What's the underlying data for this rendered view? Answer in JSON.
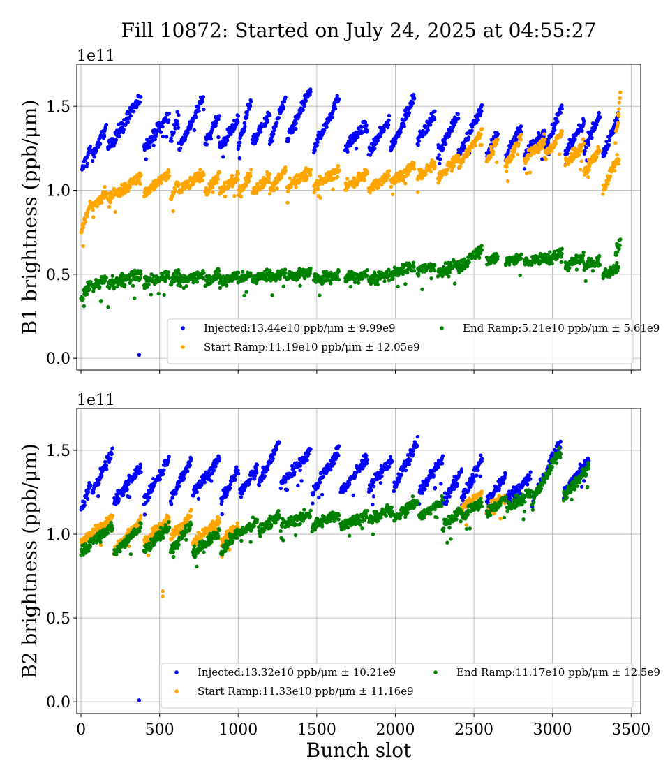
{
  "chart_data": [
    {
      "type": "scatter",
      "title": "Fill 10872: Started on July 24, 2025 at 04:55:27",
      "xlabel": "",
      "ylabel": "B1 brightness (ppb/μm)",
      "offset_label": "1e11",
      "xlim": [
        -27,
        3561
      ],
      "ylim": [
        -0.07,
        1.75
      ],
      "xticks": [
        0,
        500,
        1000,
        1500,
        2000,
        2500,
        3000,
        3500
      ],
      "yticks": [
        "0.0",
        "0.5",
        "1.0",
        "1.5"
      ],
      "grid": true,
      "legend_position": "lower-right",
      "series": [
        {
          "name": "Injected:13.44e10 ppb/μm ± 9.99e9",
          "color": "#0000ff",
          "trains": [
            [
              5,
              60,
              1.12,
              1.25
            ],
            [
              70,
              160,
              1.2,
              1.38
            ],
            [
              170,
              380,
              1.25,
              1.55
            ],
            [
              400,
              560,
              1.25,
              1.45
            ],
            [
              570,
              620,
              1.3,
              1.45
            ],
            [
              620,
              780,
              1.25,
              1.55
            ],
            [
              790,
              880,
              1.28,
              1.45
            ],
            [
              880,
              1000,
              1.25,
              1.42
            ],
            [
              1000,
              1080,
              1.25,
              1.55
            ],
            [
              1090,
              1200,
              1.28,
              1.45
            ],
            [
              1200,
              1300,
              1.28,
              1.55
            ],
            [
              1310,
              1460,
              1.3,
              1.6
            ],
            [
              1480,
              1640,
              1.25,
              1.55
            ],
            [
              1680,
              1820,
              1.25,
              1.4
            ],
            [
              1830,
              1960,
              1.22,
              1.42
            ],
            [
              1970,
              2120,
              1.25,
              1.55
            ],
            [
              2140,
              2250,
              1.3,
              1.45
            ],
            [
              2270,
              2400,
              1.22,
              1.45
            ],
            [
              2400,
              2550,
              1.2,
              1.5
            ],
            [
              2580,
              2650,
              1.2,
              1.35
            ],
            [
              2700,
              2800,
              1.2,
              1.38
            ],
            [
              2820,
              2950,
              1.2,
              1.35
            ],
            [
              2950,
              3060,
              1.25,
              1.5
            ],
            [
              3080,
              3200,
              1.22,
              1.4
            ],
            [
              3200,
              3300,
              1.25,
              1.45
            ],
            [
              3320,
              3420,
              1.2,
              1.45
            ]
          ],
          "outliers": [
            [
              370,
              0.02
            ]
          ]
        },
        {
          "name": "Start Ramp:11.19e10 ppb/μm ± 12.05e9",
          "color": "#ffa500",
          "trains": [
            [
              0,
              60,
              0.75,
              0.92
            ],
            [
              70,
              160,
              0.9,
              1.0
            ],
            [
              170,
              380,
              0.95,
              1.08
            ],
            [
              400,
              560,
              0.98,
              1.1
            ],
            [
              570,
              620,
              0.95,
              1.05
            ],
            [
              620,
              780,
              1.0,
              1.1
            ],
            [
              790,
              880,
              0.98,
              1.1
            ],
            [
              880,
              1000,
              0.98,
              1.08
            ],
            [
              1000,
              1080,
              0.98,
              1.1
            ],
            [
              1090,
              1200,
              1.0,
              1.08
            ],
            [
              1200,
              1300,
              1.0,
              1.12
            ],
            [
              1310,
              1460,
              1.02,
              1.12
            ],
            [
              1480,
              1640,
              1.02,
              1.12
            ],
            [
              1680,
              1820,
              1.02,
              1.1
            ],
            [
              1830,
              1960,
              1.0,
              1.1
            ],
            [
              1970,
              2120,
              1.05,
              1.15
            ],
            [
              2140,
              2250,
              1.08,
              1.15
            ],
            [
              2270,
              2400,
              1.08,
              1.2
            ],
            [
              2400,
              2550,
              1.15,
              1.35
            ],
            [
              2580,
              2650,
              1.18,
              1.3
            ],
            [
              2700,
              2800,
              1.15,
              1.32
            ],
            [
              2820,
              2950,
              1.18,
              1.3
            ],
            [
              2950,
              3060,
              1.2,
              1.35
            ],
            [
              3080,
              3200,
              1.15,
              1.28
            ],
            [
              3200,
              3300,
              1.1,
              1.25
            ],
            [
              3320,
              3420,
              1.0,
              1.2
            ],
            [
              3400,
              3430,
              1.3,
              1.55
            ]
          ],
          "outliers": []
        },
        {
          "name": "End Ramp:5.21e10 ppb/μm ± 5.61e9",
          "color": "#008000",
          "trains": [
            [
              0,
              60,
              0.35,
              0.45
            ],
            [
              70,
              160,
              0.42,
              0.47
            ],
            [
              170,
              380,
              0.44,
              0.5
            ],
            [
              400,
              560,
              0.45,
              0.5
            ],
            [
              570,
              620,
              0.45,
              0.5
            ],
            [
              620,
              780,
              0.46,
              0.5
            ],
            [
              790,
              880,
              0.46,
              0.5
            ],
            [
              880,
              1000,
              0.45,
              0.5
            ],
            [
              1000,
              1080,
              0.47,
              0.5
            ],
            [
              1090,
              1200,
              0.47,
              0.5
            ],
            [
              1200,
              1300,
              0.48,
              0.51
            ],
            [
              1310,
              1460,
              0.48,
              0.52
            ],
            [
              1480,
              1640,
              0.47,
              0.5
            ],
            [
              1680,
              1820,
              0.48,
              0.5
            ],
            [
              1830,
              1960,
              0.47,
              0.5
            ],
            [
              1970,
              2120,
              0.5,
              0.55
            ],
            [
              2140,
              2250,
              0.52,
              0.55
            ],
            [
              2270,
              2400,
              0.52,
              0.56
            ],
            [
              2400,
              2550,
              0.54,
              0.65
            ],
            [
              2580,
              2650,
              0.58,
              0.6
            ],
            [
              2700,
              2800,
              0.57,
              0.6
            ],
            [
              2820,
              2950,
              0.57,
              0.6
            ],
            [
              2950,
              3060,
              0.58,
              0.63
            ],
            [
              3080,
              3200,
              0.55,
              0.59
            ],
            [
              3200,
              3300,
              0.55,
              0.58
            ],
            [
              3320,
              3420,
              0.5,
              0.55
            ],
            [
              3400,
              3430,
              0.62,
              0.7
            ]
          ],
          "outliers": []
        }
      ]
    },
    {
      "type": "scatter",
      "title": "",
      "xlabel": "Bunch slot",
      "ylabel": "B2 brightness (ppb/μm)",
      "offset_label": "1e11",
      "xlim": [
        -27,
        3561
      ],
      "ylim": [
        -0.07,
        1.75
      ],
      "xticks": [
        0,
        500,
        1000,
        1500,
        2000,
        2500,
        3000,
        3500
      ],
      "yticks": [
        "0.0",
        "0.5",
        "1.0",
        "1.5"
      ],
      "grid": true,
      "legend_position": "lower-right",
      "series": [
        {
          "name": "Injected:13.32e10 ppb/μm ± 10.21e9",
          "color": "#0000ff",
          "trains": [
            [
              0,
              60,
              1.15,
              1.3
            ],
            [
              70,
              200,
              1.25,
              1.5
            ],
            [
              210,
              380,
              1.2,
              1.4
            ],
            [
              400,
              560,
              1.2,
              1.45
            ],
            [
              570,
              700,
              1.2,
              1.45
            ],
            [
              710,
              880,
              1.25,
              1.45
            ],
            [
              890,
              1000,
              1.2,
              1.38
            ],
            [
              1010,
              1120,
              1.25,
              1.4
            ],
            [
              1130,
              1260,
              1.3,
              1.55
            ],
            [
              1270,
              1460,
              1.3,
              1.5
            ],
            [
              1470,
              1640,
              1.25,
              1.5
            ],
            [
              1650,
              1820,
              1.25,
              1.45
            ],
            [
              1830,
              1980,
              1.28,
              1.45
            ],
            [
              1990,
              2140,
              1.28,
              1.55
            ],
            [
              2150,
              2300,
              1.25,
              1.45
            ],
            [
              2300,
              2420,
              1.18,
              1.38
            ],
            [
              2420,
              2550,
              1.2,
              1.45
            ],
            [
              2580,
              2700,
              1.2,
              1.35
            ],
            [
              2710,
              2860,
              1.2,
              1.35
            ],
            [
              2870,
              3050,
              1.2,
              1.55
            ],
            [
              3070,
              3230,
              1.25,
              1.45
            ]
          ],
          "outliers": [
            [
              370,
              0.01
            ]
          ]
        },
        {
          "name": "Start Ramp:11.33e10 ppb/μm ± 11.16e9",
          "color": "#ffa500",
          "trains": [
            [
              0,
              200,
              0.95,
              1.1
            ],
            [
              210,
              380,
              0.9,
              1.08
            ],
            [
              400,
              560,
              0.95,
              1.1
            ],
            [
              570,
              700,
              0.98,
              1.12
            ],
            [
              710,
              880,
              0.95,
              1.08
            ],
            [
              890,
              1000,
              0.95,
              1.05
            ],
            [
              2420,
              2550,
              1.15,
              1.25
            ],
            [
              2580,
              2700,
              1.15,
              1.22
            ]
          ],
          "outliers": [
            [
              520,
              0.63
            ],
            [
              520,
              0.66
            ]
          ]
        },
        {
          "name": "End Ramp:11.17e10 ppb/μm ± 12.5e9",
          "color": "#008000",
          "trains": [
            [
              0,
              200,
              0.9,
              1.05
            ],
            [
              210,
              380,
              0.88,
              1.05
            ],
            [
              400,
              560,
              0.9,
              1.05
            ],
            [
              570,
              700,
              0.9,
              1.05
            ],
            [
              710,
              880,
              0.88,
              1.02
            ],
            [
              890,
              1000,
              0.9,
              1.02
            ],
            [
              1010,
              1120,
              1.0,
              1.08
            ],
            [
              1130,
              1260,
              1.02,
              1.12
            ],
            [
              1270,
              1460,
              1.05,
              1.12
            ],
            [
              1470,
              1640,
              1.05,
              1.12
            ],
            [
              1650,
              1820,
              1.05,
              1.12
            ],
            [
              1830,
              1980,
              1.08,
              1.15
            ],
            [
              1990,
              2140,
              1.1,
              1.2
            ],
            [
              2150,
              2300,
              1.1,
              1.2
            ],
            [
              2300,
              2420,
              1.05,
              1.15
            ],
            [
              2420,
              2550,
              1.1,
              1.2
            ],
            [
              2580,
              2700,
              1.12,
              1.22
            ],
            [
              2710,
              2860,
              1.15,
              1.25
            ],
            [
              2870,
              3050,
              1.2,
              1.5
            ],
            [
              3070,
              3230,
              1.22,
              1.4
            ]
          ],
          "outliers": []
        }
      ]
    }
  ]
}
